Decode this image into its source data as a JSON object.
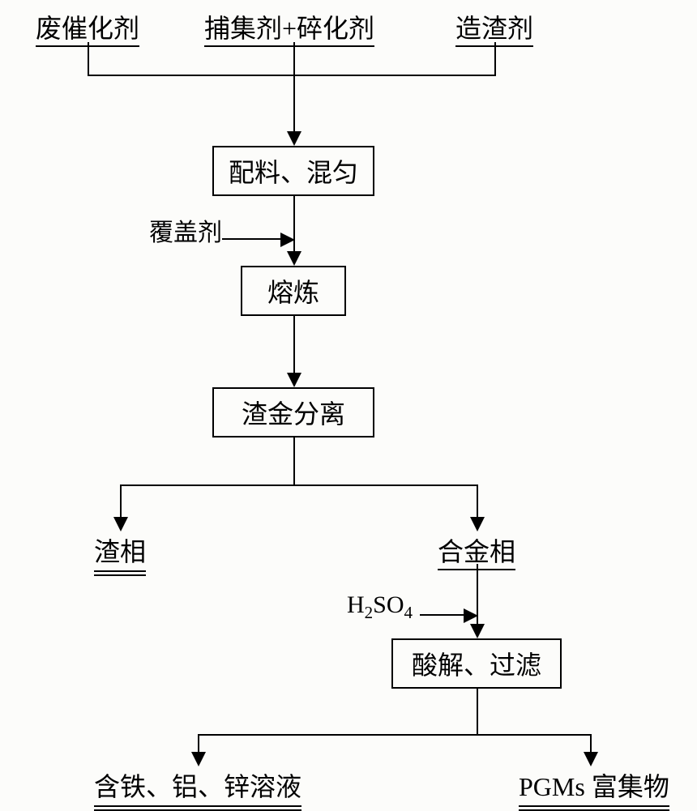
{
  "inputs": {
    "left": "废催化剂",
    "center": "捕集剂+碎化剂",
    "right": "造渣剂"
  },
  "sideInputs": {
    "cover": "覆盖剂",
    "acid_html": "H<span class=\"sub\">2</span>SO<span class=\"sub\">4</span>"
  },
  "boxes": {
    "mix": "配料、混匀",
    "smelt": "熔炼",
    "separate": "渣金分离",
    "acidFilter": "酸解、过滤"
  },
  "midOutputs": {
    "slag": "渣相",
    "alloy": "合金相"
  },
  "finalOutputs": {
    "solution": "含铁、铝、锌溶液",
    "pgms": "PGMs 富集物"
  },
  "layout": {
    "centerX": 362,
    "topY": 10,
    "inputLeftX": 44,
    "inputRightX": 562,
    "joinTopHlineY": 92,
    "mixBoxY": 180,
    "mixBoxW": 200,
    "mixBoxH": 62,
    "coverY": 262,
    "smeltBoxY": 328,
    "smeltBoxW": 130,
    "smeltBoxH": 62,
    "sepBoxY": 478,
    "sepBoxW": 200,
    "sepBoxH": 62,
    "splitH1Y": 598,
    "slagX": 116,
    "alloyX": 540,
    "midLabelY": 656,
    "acidLabelY": 730,
    "acidBoxY": 788,
    "acidBoxW": 210,
    "acidBoxH": 62,
    "splitH2Y": 906,
    "finalLeftX": 116,
    "finalRightX": 640,
    "finalY": 946
  },
  "colors": {
    "bg": "#fcfcfa",
    "line": "#000000"
  }
}
